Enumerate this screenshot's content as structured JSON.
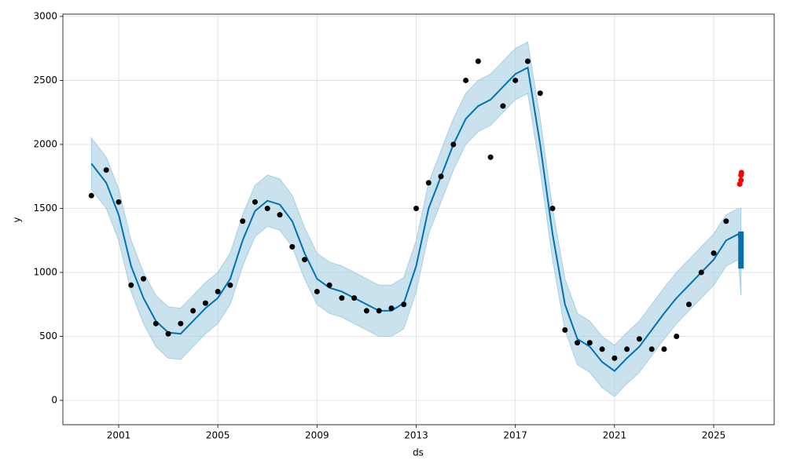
{
  "chart_data": {
    "type": "forecast",
    "x_label": "ds",
    "y_label": "y",
    "xlim": [
      1998.75,
      2027.44
    ],
    "ylim": [
      -190,
      3018
    ],
    "xticks": [
      2001,
      2005,
      2009,
      2013,
      2017,
      2021,
      2025
    ],
    "yticks": [
      0,
      500,
      1000,
      1500,
      2000,
      2500,
      3000
    ],
    "grid": true,
    "series": [
      {
        "kind": "band",
        "color": "#a6cee3",
        "x": [
          1999.9,
          2000.5,
          2001,
          2001.5,
          2002,
          2002.5,
          2003,
          2003.5,
          2004,
          2004.5,
          2005,
          2005.5,
          2006,
          2006.5,
          2007,
          2007.5,
          2008,
          2008.5,
          2009,
          2009.5,
          2010,
          2010.5,
          2011,
          2011.5,
          2012,
          2012.5,
          2013,
          2013.5,
          2014,
          2014.5,
          2015,
          2015.5,
          2016,
          2016.5,
          2017,
          2017.5,
          2018,
          2018.5,
          2019,
          2019.5,
          2020,
          2020.5,
          2021,
          2021.5,
          2022,
          2022.5,
          2023,
          2023.5,
          2024,
          2024.5,
          2025,
          2025.5,
          2026,
          2026.1
        ],
        "lower": [
          1650,
          1500,
          1250,
          850,
          600,
          420,
          330,
          320,
          420,
          520,
          600,
          750,
          1050,
          1280,
          1360,
          1330,
          1200,
          950,
          750,
          680,
          650,
          600,
          550,
          500,
          500,
          560,
          850,
          1300,
          1550,
          1800,
          2000,
          2100,
          2150,
          2250,
          2350,
          2400,
          1800,
          1100,
          550,
          280,
          220,
          100,
          30,
          130,
          220,
          350,
          480,
          600,
          700,
          800,
          900,
          1050,
          1100,
          820
        ],
        "upper": [
          2050,
          1900,
          1650,
          1250,
          1000,
          820,
          730,
          720,
          820,
          920,
          1000,
          1150,
          1450,
          1680,
          1760,
          1730,
          1600,
          1350,
          1150,
          1080,
          1050,
          1000,
          950,
          900,
          900,
          960,
          1250,
          1700,
          1950,
          2200,
          2400,
          2500,
          2550,
          2650,
          2750,
          2800,
          2200,
          1500,
          950,
          680,
          620,
          500,
          430,
          530,
          620,
          750,
          880,
          1000,
          1100,
          1200,
          1300,
          1450,
          1500,
          1500
        ]
      },
      {
        "kind": "line",
        "color": "#0072b2",
        "width": 2,
        "x": [
          1999.9,
          2000.5,
          2001,
          2001.5,
          2002,
          2002.5,
          2003,
          2003.5,
          2004,
          2004.5,
          2005,
          2005.5,
          2006,
          2006.5,
          2007,
          2007.5,
          2008,
          2008.5,
          2009,
          2009.5,
          2010,
          2010.5,
          2011,
          2011.5,
          2012,
          2012.5,
          2013,
          2013.5,
          2014,
          2014.5,
          2015,
          2015.5,
          2016,
          2016.5,
          2017,
          2017.5,
          2018,
          2018.5,
          2019,
          2019.5,
          2020,
          2020.5,
          2021,
          2021.5,
          2022,
          2022.5,
          2023,
          2023.5,
          2024,
          2024.5,
          2025,
          2025.5,
          2026,
          2026.1
        ],
        "values": [
          1850,
          1700,
          1450,
          1050,
          800,
          620,
          530,
          520,
          620,
          720,
          800,
          950,
          1250,
          1480,
          1560,
          1530,
          1400,
          1150,
          950,
          880,
          850,
          800,
          750,
          700,
          700,
          760,
          1050,
          1500,
          1750,
          2000,
          2200,
          2300,
          2350,
          2450,
          2550,
          2600,
          2000,
          1300,
          750,
          480,
          420,
          300,
          230,
          330,
          420,
          550,
          680,
          800,
          900,
          1000,
          1100,
          1250,
          1300,
          1150
        ]
      },
      {
        "kind": "points",
        "color": "#000000",
        "x": [
          1999.9,
          2000.5,
          2001,
          2001.5,
          2002,
          2002.5,
          2003,
          2003.5,
          2004,
          2004.5,
          2005,
          2005.5,
          2006,
          2006.5,
          2007,
          2007.5,
          2008,
          2008.5,
          2009,
          2009.5,
          2010,
          2010.5,
          2011,
          2011.5,
          2012,
          2012.5,
          2013,
          2013.5,
          2014,
          2014.5,
          2015,
          2015.5,
          2016,
          2016.5,
          2017,
          2017.5,
          2018,
          2018.5,
          2019,
          2019.5,
          2020,
          2020.5,
          2021,
          2021.5,
          2022,
          2022.5,
          2023,
          2023.5,
          2024,
          2024.5,
          2025,
          2025.5
        ],
        "values": [
          1600,
          1800,
          1550,
          900,
          950,
          600,
          520,
          600,
          700,
          760,
          850,
          900,
          1400,
          1550,
          1500,
          1450,
          1200,
          1100,
          850,
          900,
          800,
          800,
          700,
          700,
          720,
          750,
          1500,
          1700,
          1750,
          2000,
          2500,
          2650,
          1900,
          2300,
          2500,
          2650,
          2400,
          1500,
          550,
          450,
          450,
          400,
          330,
          400,
          480,
          400,
          400,
          500,
          750,
          1000,
          1150,
          1400
        ]
      },
      {
        "kind": "line",
        "color": "#0072b2",
        "width": 7,
        "x": [
          2026.1,
          2026.1
        ],
        "values": [
          1030,
          1320
        ]
      },
      {
        "kind": "points",
        "color": "#ff0000",
        "x": [
          2026.05,
          2026.1,
          2026.1,
          2026.12
        ],
        "values": [
          1690,
          1720,
          1760,
          1780
        ]
      }
    ]
  }
}
